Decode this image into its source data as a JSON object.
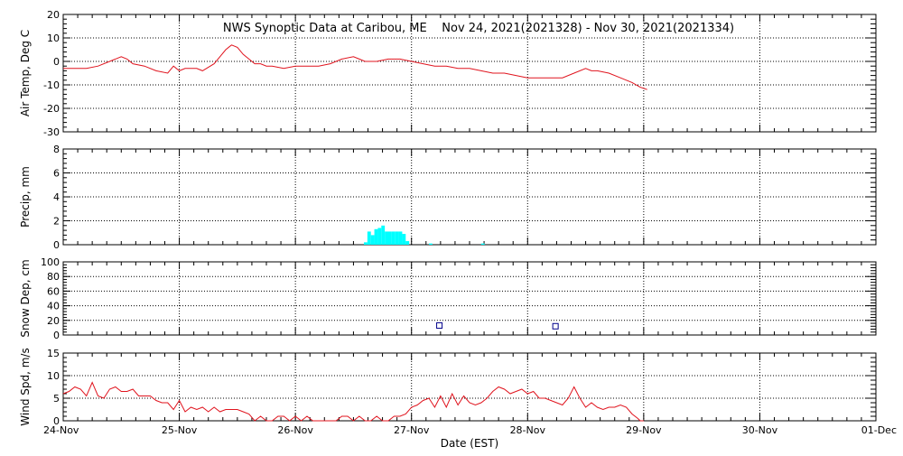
{
  "title": "NWS Synoptic Data at Caribou, ME    Nov 24, 2021(2021328) - Nov 30, 2021(2021334)",
  "xlabel": "Date (EST)",
  "x_ticks": [
    "24-Nov",
    "25-Nov",
    "26-Nov",
    "27-Nov",
    "28-Nov",
    "29-Nov",
    "30-Nov",
    "01-Dec"
  ],
  "colors": {
    "line": "#e0141e",
    "precip": "#00ffff",
    "snow_marker": "#00008b",
    "grid": "#000000"
  },
  "chart_data": [
    {
      "type": "line",
      "ylabel": "Air Temp, Deg C",
      "ylim": [
        -30,
        20
      ],
      "y_ticks": [
        "20",
        "10",
        "0",
        "-10",
        "-20",
        "-30"
      ],
      "xlim_days": [
        0,
        7
      ],
      "grid": true,
      "series": [
        {
          "x": [
            0,
            0.1,
            0.2,
            0.3,
            0.4,
            0.5,
            0.55,
            0.6,
            0.7,
            0.8,
            0.9,
            0.95,
            1.0,
            1.05,
            1.1,
            1.15,
            1.2,
            1.3,
            1.35,
            1.4,
            1.45,
            1.5,
            1.55,
            1.6,
            1.65,
            1.7,
            1.75,
            1.8,
            1.9,
            2.0,
            2.1,
            2.2,
            2.3,
            2.4,
            2.5,
            2.55,
            2.6,
            2.7,
            2.8,
            2.9,
            3.0,
            3.1,
            3.2,
            3.3,
            3.4,
            3.5,
            3.6,
            3.7,
            3.8,
            3.9,
            4.0,
            4.1,
            4.2,
            4.3,
            4.4,
            4.5,
            4.55,
            4.6,
            4.7,
            4.8,
            4.9,
            4.97,
            5.03
          ],
          "y": [
            -3,
            -3,
            -3,
            -2,
            0,
            2,
            1,
            -1,
            -2,
            -4,
            -5,
            -2,
            -4,
            -3,
            -3,
            -3,
            -4,
            -1,
            2,
            5,
            7,
            6,
            3,
            1,
            -1,
            -1,
            -2,
            -2,
            -3,
            -2,
            -2,
            -2,
            -1,
            1,
            2,
            1,
            0,
            0,
            1,
            1,
            0,
            -1,
            -2,
            -2,
            -3,
            -3,
            -4,
            -5,
            -5,
            -6,
            -7,
            -7,
            -7,
            -7,
            -5,
            -3,
            -4,
            -4,
            -5,
            -7,
            -9,
            -11,
            -12
          ]
        }
      ]
    },
    {
      "type": "bar",
      "ylabel": "Precip, mm",
      "ylim": [
        0,
        8
      ],
      "y_ticks": [
        "8",
        "6",
        "4",
        "2",
        "0"
      ],
      "grid": true,
      "series": [
        {
          "x": [
            2.59,
            2.62,
            2.65,
            2.68,
            2.71,
            2.74,
            2.77,
            2.8,
            2.83,
            2.86,
            2.89,
            2.92,
            2.95,
            3.15,
            3.6
          ],
          "y": [
            0.2,
            1.1,
            0.8,
            1.3,
            1.4,
            1.6,
            1.1,
            1.1,
            1.1,
            1.1,
            1.1,
            0.9,
            0.3,
            0.1,
            0.1
          ]
        }
      ]
    },
    {
      "type": "scatter",
      "ylabel": "Snow Dep, cm",
      "ylim": [
        0,
        100
      ],
      "y_ticks": [
        "100",
        "80",
        "60",
        "40",
        "20",
        "0"
      ],
      "grid": true,
      "series": [
        {
          "x": [
            3.24,
            4.24
          ],
          "y": [
            13,
            12
          ]
        }
      ]
    },
    {
      "type": "line",
      "ylabel": "Wind Spd, m/s",
      "ylim": [
        0,
        15
      ],
      "y_ticks": [
        "15",
        "10",
        "5",
        "0"
      ],
      "grid": true,
      "series": [
        {
          "x": [
            0,
            0.05,
            0.1,
            0.15,
            0.2,
            0.25,
            0.3,
            0.35,
            0.4,
            0.45,
            0.5,
            0.55,
            0.6,
            0.65,
            0.7,
            0.75,
            0.8,
            0.85,
            0.9,
            0.95,
            1.0,
            1.05,
            1.1,
            1.15,
            1.2,
            1.25,
            1.3,
            1.35,
            1.4,
            1.45,
            1.5,
            1.55,
            1.6,
            1.65,
            1.7,
            1.75,
            1.8,
            1.85,
            1.9,
            1.95,
            2.0,
            2.05,
            2.1,
            2.15,
            2.2,
            2.25,
            2.3,
            2.35,
            2.4,
            2.45,
            2.5,
            2.55,
            2.6,
            2.65,
            2.7,
            2.75,
            2.8,
            2.85,
            2.9,
            2.95,
            3.0,
            3.05,
            3.1,
            3.15,
            3.2,
            3.25,
            3.3,
            3.35,
            3.4,
            3.45,
            3.5,
            3.55,
            3.6,
            3.65,
            3.7,
            3.75,
            3.8,
            3.85,
            3.9,
            3.95,
            4.0,
            4.05,
            4.1,
            4.15,
            4.2,
            4.25,
            4.3,
            4.35,
            4.4,
            4.45,
            4.5,
            4.55,
            4.6,
            4.65,
            4.7,
            4.75,
            4.8,
            4.85,
            4.9,
            4.95,
            4.97,
            5.0
          ],
          "y": [
            6,
            6.5,
            7.5,
            7,
            5.5,
            8.5,
            5.5,
            5,
            7,
            7.5,
            6.5,
            6.5,
            7,
            5.5,
            5.5,
            5.5,
            4.5,
            4,
            4,
            2.5,
            4.5,
            2,
            3,
            2.5,
            3,
            2,
            3,
            2,
            2.5,
            2.5,
            2.5,
            2,
            1.5,
            0,
            1,
            0,
            0,
            1,
            1,
            0,
            1,
            0,
            1,
            0,
            0,
            0,
            0,
            0,
            1,
            1,
            0,
            1,
            0,
            0,
            1,
            0,
            0,
            1,
            1,
            1.5,
            3,
            3.5,
            4.5,
            5,
            3,
            5.5,
            3,
            6,
            3.5,
            5.5,
            4,
            3.5,
            4,
            5,
            6.5,
            7.5,
            7,
            6,
            6.5,
            7,
            6,
            6.5,
            5,
            5,
            4.5,
            4,
            3.5,
            5,
            7.5,
            5,
            3,
            4,
            3,
            2.5,
            3,
            3,
            3.5,
            3,
            1.5,
            0.5,
            0,
            0
          ]
        }
      ]
    }
  ]
}
